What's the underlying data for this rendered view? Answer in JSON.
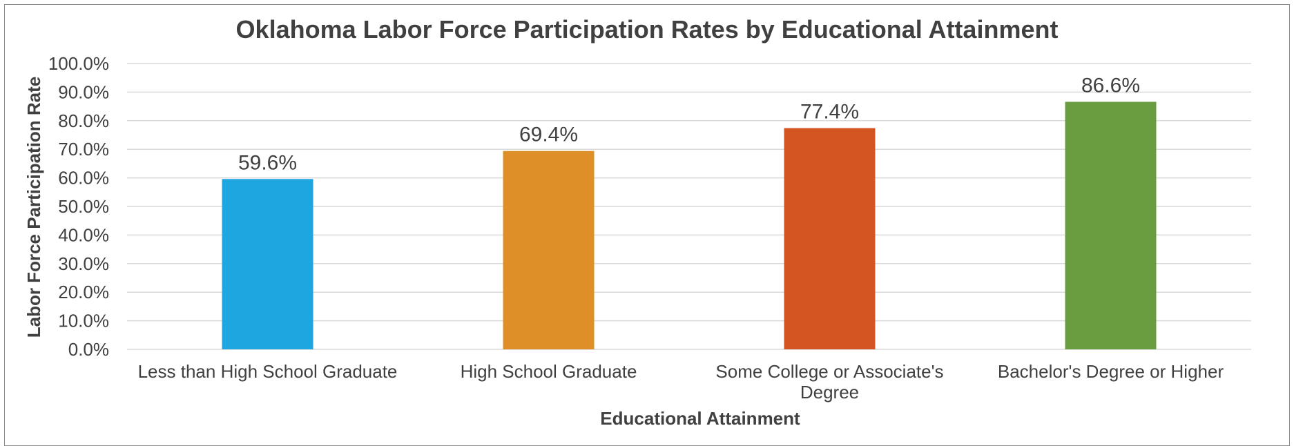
{
  "chart_data": {
    "type": "bar",
    "title": "Oklahoma Labor Force Participation Rates by Educational Attainment",
    "xlabel": "Educational Attainment",
    "ylabel": "Labor Force Participation Rate",
    "categories": [
      [
        "Less than High School Graduate"
      ],
      [
        "High School Graduate"
      ],
      [
        "Some College or Associate's",
        "Degree"
      ],
      [
        "Bachelor's Degree or Higher"
      ]
    ],
    "values": [
      59.6,
      69.4,
      77.4,
      86.6
    ],
    "data_labels": [
      "59.6%",
      "69.4%",
      "77.4%",
      "86.6%"
    ],
    "colors": [
      "#1ea6e0",
      "#de8f27",
      "#d35522",
      "#6a9c40"
    ],
    "ylim": [
      0,
      100
    ],
    "yticks": [
      0,
      10,
      20,
      30,
      40,
      50,
      60,
      70,
      80,
      90,
      100
    ],
    "ytick_labels": [
      "0.0%",
      "10.0%",
      "20.0%",
      "30.0%",
      "40.0%",
      "50.0%",
      "60.0%",
      "70.0%",
      "80.0%",
      "90.0%",
      "100.0%"
    ],
    "grid": true,
    "legend": "none"
  }
}
